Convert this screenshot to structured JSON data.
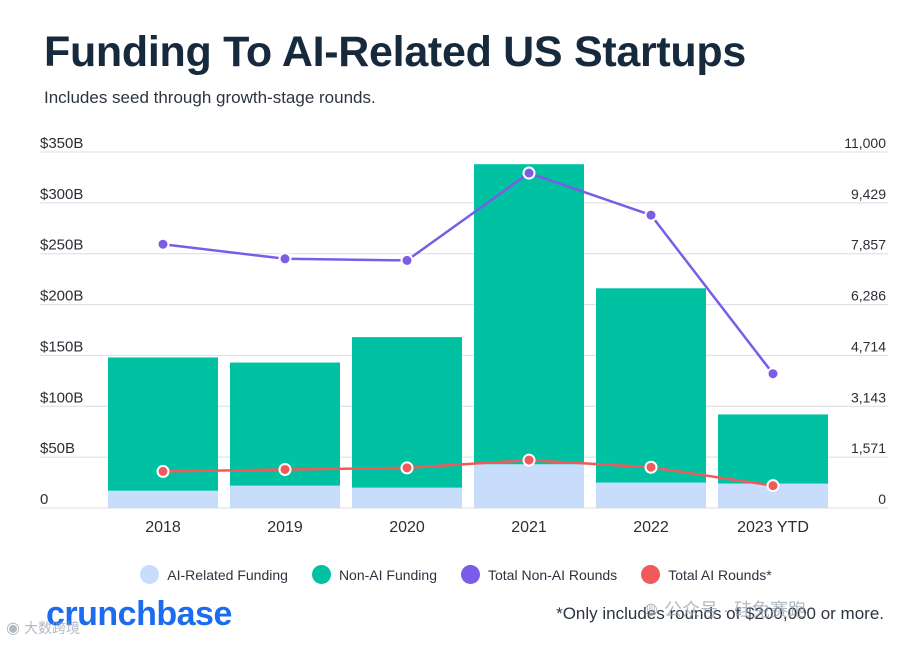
{
  "title": "Funding To AI-Related US Startups",
  "subtitle": "Includes seed through growth-stage rounds.",
  "chart_data": {
    "type": "bar",
    "stacked": true,
    "categories": [
      "2018",
      "2019",
      "2020",
      "2021",
      "2022",
      "2023 YTD"
    ],
    "series": [
      {
        "name": "AI-Related Funding",
        "type": "bar",
        "axis": "left",
        "color": "#c8dcfb",
        "values": [
          17,
          22,
          20,
          43,
          25,
          24
        ]
      },
      {
        "name": "Non-AI Funding",
        "type": "bar",
        "axis": "left",
        "color": "#00c2a2",
        "values": [
          131,
          121,
          148,
          295,
          191,
          68
        ]
      },
      {
        "name": "Total Non-AI Rounds",
        "type": "line",
        "axis": "right",
        "color": "#7b5ce6",
        "values": [
          8150,
          7700,
          7650,
          10350,
          9050,
          4150
        ]
      },
      {
        "name": "Total AI Rounds*",
        "type": "line",
        "axis": "right",
        "color": "#f05a5a",
        "values": [
          1130,
          1190,
          1240,
          1480,
          1260,
          690
        ]
      }
    ],
    "left_axis": {
      "ylim": [
        0,
        350
      ],
      "ticks": [
        "$350B",
        "$300B",
        "$250B",
        "$200B",
        "$150B",
        "$100B",
        "$50B",
        "0"
      ]
    },
    "right_axis": {
      "ylim": [
        0,
        11000
      ],
      "ticks": [
        "11,000",
        "9,429",
        "7,857",
        "6,286",
        "4,714",
        "3,143",
        "1,571",
        "0"
      ]
    },
    "grid": true,
    "legend_position": "bottom"
  },
  "legend": [
    {
      "label": "AI-Related Funding",
      "color": "#c8dcfb"
    },
    {
      "label": "Non-AI Funding",
      "color": "#00c2a2"
    },
    {
      "label": "Total Non-AI Rounds",
      "color": "#7b5ce6"
    },
    {
      "label": "Total AI Rounds*",
      "color": "#f05a5a"
    }
  ],
  "logo": "crunchbase",
  "footnote": "*Only includes rounds of $200,000 or more.",
  "watermarks": [
    {
      "icon": "wechat-icon",
      "text": "公众号 · 硅兔赛跑"
    },
    {
      "icon": "weibo-icon",
      "text": "大数跨境"
    }
  ]
}
